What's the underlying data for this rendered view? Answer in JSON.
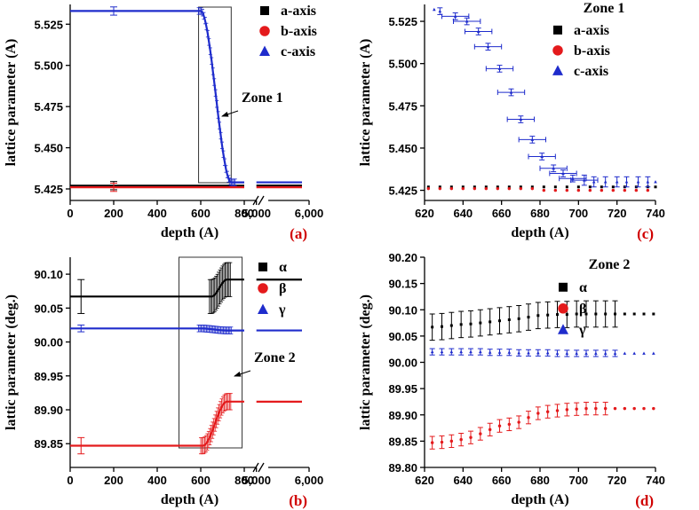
{
  "colors": {
    "a": "#000000",
    "b": "#e41a1c",
    "c": "#1f2ccc",
    "tag": "#d00000"
  },
  "chart_data": [
    {
      "id": "a",
      "type": "scatter",
      "panel_label": "(a)",
      "xlabel": "depth (A)",
      "ylabel": "lattice parameter (A)",
      "xticks": [
        "0",
        "200",
        "400",
        "600",
        "800",
        "5,000",
        "6,000"
      ],
      "yticks": [
        "5.425",
        "5.450",
        "5.475",
        "5.500",
        "5.525"
      ],
      "xlim": [
        0,
        6000
      ],
      "ylim": [
        5.418,
        5.537
      ],
      "axis_break": "between 800 and 5,000",
      "legend": [
        "a-axis",
        "b-axis",
        "c-axis"
      ],
      "legend_placement": "top-right",
      "annotation": "Zone 1",
      "series": [
        {
          "name": "a-axis",
          "marker": "square",
          "x_range": [
            0,
            6000
          ],
          "value": 5.427,
          "zone_end_value": 5.427
        },
        {
          "name": "b-axis",
          "marker": "circle",
          "x_range": [
            0,
            6000
          ],
          "value": 5.426,
          "zone_end_value": 5.426
        },
        {
          "name": "c-axis",
          "marker": "triangle",
          "x_range": [
            0,
            6000
          ],
          "value_before": 5.533,
          "value_after": 5.429,
          "transition": [
            600,
            740
          ]
        }
      ]
    },
    {
      "id": "c",
      "type": "scatter",
      "panel_label": "(c)",
      "xlabel": "depth (A)",
      "ylabel": "lattice parameter (A)",
      "xticks": [
        "620",
        "640",
        "660",
        "680",
        "700",
        "720",
        "740"
      ],
      "yticks": [
        "5.425",
        "5.450",
        "5.475",
        "5.500",
        "5.525"
      ],
      "xlim": [
        620,
        740
      ],
      "ylim": [
        5.419,
        5.535
      ],
      "legend_title": "Zone 1",
      "legend": [
        "a-axis",
        "b-axis",
        "c-axis"
      ],
      "legend_placement": "top-right",
      "series": [
        {
          "name": "a-axis",
          "marker": "square",
          "x": [
            622,
            628,
            634,
            640,
            646,
            652,
            658,
            664,
            670,
            676,
            682,
            688,
            694,
            700,
            706,
            712,
            718,
            724,
            730,
            736,
            740
          ],
          "y": [
            5.427,
            5.427,
            5.427,
            5.427,
            5.427,
            5.427,
            5.427,
            5.427,
            5.427,
            5.427,
            5.427,
            5.427,
            5.427,
            5.427,
            5.427,
            5.427,
            5.427,
            5.427,
            5.427,
            5.427,
            5.427
          ]
        },
        {
          "name": "b-axis",
          "marker": "circle",
          "x": [
            622,
            628,
            634,
            640,
            646,
            652,
            658,
            664,
            670,
            676,
            682,
            688,
            694,
            700,
            706,
            712,
            718,
            724,
            730,
            736
          ],
          "y": [
            5.426,
            5.426,
            5.426,
            5.426,
            5.426,
            5.426,
            5.426,
            5.426,
            5.426,
            5.426,
            5.425,
            5.425,
            5.425,
            5.425,
            5.425,
            5.425,
            5.425,
            5.425,
            5.425,
            5.425
          ]
        },
        {
          "name": "c-axis",
          "marker": "triangle",
          "x": [
            625,
            628,
            636,
            642,
            648,
            653,
            659,
            665,
            670,
            676,
            681,
            687,
            692,
            697,
            703,
            708,
            714,
            720,
            725,
            731,
            736,
            740
          ],
          "y": [
            5.532,
            5.531,
            5.528,
            5.525,
            5.519,
            5.51,
            5.497,
            5.483,
            5.467,
            5.455,
            5.445,
            5.438,
            5.435,
            5.432,
            5.431,
            5.43,
            5.43,
            5.43,
            5.43,
            5.43,
            5.43,
            5.43
          ],
          "xerr": [
            0,
            0,
            7,
            7,
            7,
            7,
            7,
            7,
            7,
            7,
            7,
            7,
            7,
            7,
            7,
            0,
            0,
            0,
            0,
            0,
            0,
            0
          ],
          "yerr": [
            0,
            0.002,
            0.002,
            0.002,
            0.002,
            0.002,
            0.002,
            0.002,
            0.002,
            0.002,
            0.002,
            0.002,
            0.002,
            0.002,
            0.003,
            0.003,
            0.003,
            0.003,
            0.003,
            0.003,
            0.003,
            0
          ]
        }
      ]
    },
    {
      "id": "b",
      "type": "scatter",
      "panel_label": "(b)",
      "xlabel": "depth (A)",
      "ylabel": "lattic parameter (deg.)",
      "xticks": [
        "0",
        "200",
        "400",
        "600",
        "800",
        "5,000",
        "6,000"
      ],
      "yticks": [
        "89.85",
        "89.90",
        "89.95",
        "90.00",
        "90.05",
        "90.10"
      ],
      "xlim": [
        0,
        6000
      ],
      "ylim": [
        89.815,
        90.125
      ],
      "axis_break": "between 800 and 5,000",
      "legend": [
        "α",
        "β",
        "γ"
      ],
      "legend_placement": "top-right",
      "annotation": "Zone 2",
      "series": [
        {
          "name": "α",
          "marker": "square",
          "value_before": 90.067,
          "value_after": 90.092,
          "transition": [
            650,
            720
          ]
        },
        {
          "name": "β",
          "marker": "circle",
          "value_before": 89.847,
          "value_after": 89.912,
          "transition": [
            610,
            720
          ]
        },
        {
          "name": "γ",
          "marker": "triangle",
          "value_before": 90.02,
          "value_after": 90.017,
          "transition": [
            600,
            720
          ]
        }
      ]
    },
    {
      "id": "d",
      "type": "scatter",
      "panel_label": "(d)",
      "xlabel": "depth (A)",
      "ylabel": "lattic parameter (deg.)",
      "xticks": [
        "620",
        "640",
        "660",
        "680",
        "700",
        "720",
        "740"
      ],
      "yticks": [
        "89.80",
        "89.85",
        "89.90",
        "89.95",
        "90.00",
        "90.05",
        "90.10",
        "90.15",
        "90.20"
      ],
      "xlim": [
        620,
        740
      ],
      "ylim": [
        89.8,
        90.2
      ],
      "legend_title": "Zone 2",
      "legend": [
        "α",
        "β",
        "γ"
      ],
      "legend_placement": "top-right",
      "series": [
        {
          "name": "α",
          "marker": "square",
          "x": [
            624,
            629,
            634,
            639,
            644,
            649,
            654,
            659,
            664,
            669,
            674,
            679,
            684,
            689,
            694,
            699,
            704,
            709,
            714,
            719,
            724,
            729,
            734,
            739
          ],
          "y": [
            90.067,
            90.068,
            90.07,
            90.072,
            90.073,
            90.075,
            90.077,
            90.079,
            90.081,
            90.083,
            90.086,
            90.089,
            90.09,
            90.091,
            90.091,
            90.092,
            90.092,
            90.092,
            90.092,
            90.092,
            90.092,
            90.092,
            90.092,
            90.092
          ],
          "err": [
            0.025,
            0.025,
            0.025,
            0.025,
            0.025,
            0.025,
            0.025,
            0.025,
            0.025,
            0.025,
            0.025,
            0.025,
            0.025,
            0.025,
            0.025,
            0.025,
            0.025,
            0.025,
            0.025,
            0.025,
            0,
            0,
            0,
            0
          ]
        },
        {
          "name": "β",
          "marker": "circle",
          "x": [
            624,
            629,
            634,
            639,
            644,
            649,
            654,
            659,
            664,
            669,
            674,
            679,
            684,
            689,
            694,
            699,
            704,
            709,
            714,
            719,
            724,
            729,
            734,
            739
          ],
          "y": [
            89.847,
            89.848,
            89.85,
            89.853,
            89.857,
            89.864,
            89.872,
            89.879,
            89.882,
            89.886,
            89.895,
            89.903,
            89.906,
            89.908,
            89.91,
            89.911,
            89.912,
            89.912,
            89.912,
            89.912,
            89.912,
            89.912,
            89.912,
            89.912
          ],
          "err": [
            0.012,
            0.012,
            0.012,
            0.012,
            0.012,
            0.012,
            0.012,
            0.012,
            0.012,
            0.012,
            0.012,
            0.012,
            0.012,
            0.012,
            0.012,
            0.012,
            0.012,
            0.012,
            0.012,
            0,
            0,
            0,
            0,
            0
          ]
        },
        {
          "name": "γ",
          "marker": "triangle",
          "x": [
            624,
            629,
            634,
            639,
            644,
            649,
            654,
            659,
            664,
            669,
            674,
            679,
            684,
            689,
            694,
            699,
            704,
            709,
            714,
            719,
            724,
            729,
            734,
            739
          ],
          "y": [
            90.02,
            90.02,
            90.02,
            90.02,
            90.02,
            90.02,
            90.019,
            90.019,
            90.019,
            90.018,
            90.018,
            90.018,
            90.018,
            90.017,
            90.017,
            90.017,
            90.017,
            90.017,
            90.017,
            90.017,
            90.017,
            90.017,
            90.017,
            90.017
          ],
          "err": [
            0.006,
            0.006,
            0.006,
            0.006,
            0.006,
            0.006,
            0.006,
            0.006,
            0.006,
            0.006,
            0.006,
            0.006,
            0.006,
            0.006,
            0.006,
            0.006,
            0.006,
            0.006,
            0.006,
            0.006,
            0,
            0,
            0,
            0
          ]
        }
      ]
    }
  ]
}
